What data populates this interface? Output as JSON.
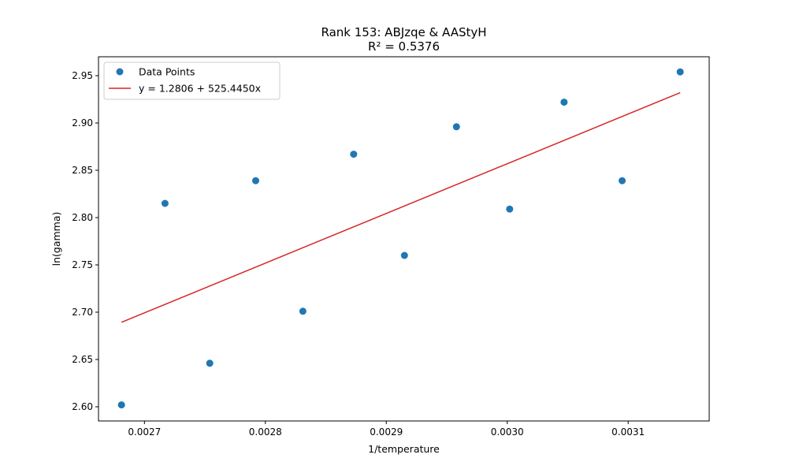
{
  "chart_data": {
    "type": "scatter",
    "title": "Rank 153: ABJzqe & AAStyH",
    "subtitle": "R² = 0.5376",
    "xlabel": "1/temperature",
    "ylabel": "ln(gamma)",
    "xlim": [
      0.002662,
      0.003167
    ],
    "ylim": [
      2.585,
      2.97
    ],
    "xticks": [
      0.0027,
      0.0028,
      0.0029,
      0.003,
      0.0031
    ],
    "xtick_labels": [
      "0.0027",
      "0.0028",
      "0.0029",
      "0.0030",
      "0.0031"
    ],
    "yticks": [
      2.6,
      2.65,
      2.7,
      2.75,
      2.8,
      2.85,
      2.9,
      2.95
    ],
    "ytick_labels": [
      "2.60",
      "2.65",
      "2.70",
      "2.75",
      "2.80",
      "2.85",
      "2.90",
      "2.95"
    ],
    "grid": false,
    "legend_position": "top-left",
    "series": [
      {
        "name": "Data Points",
        "kind": "scatter",
        "color": "#1f77b4",
        "x": [
          0.002681,
          0.002717,
          0.002754,
          0.002792,
          0.002831,
          0.002873,
          0.002915,
          0.002958,
          0.003002,
          0.003047,
          0.003095,
          0.003143
        ],
        "y": [
          2.602,
          2.815,
          2.646,
          2.839,
          2.701,
          2.867,
          2.76,
          2.896,
          2.809,
          2.922,
          2.839,
          2.954
        ]
      },
      {
        "name": "y = 1.2806 + 525.4450x",
        "kind": "line",
        "color": "#d62728",
        "intercept": 1.2806,
        "slope": 525.445,
        "x": [
          0.002681,
          0.003143
        ]
      }
    ]
  }
}
